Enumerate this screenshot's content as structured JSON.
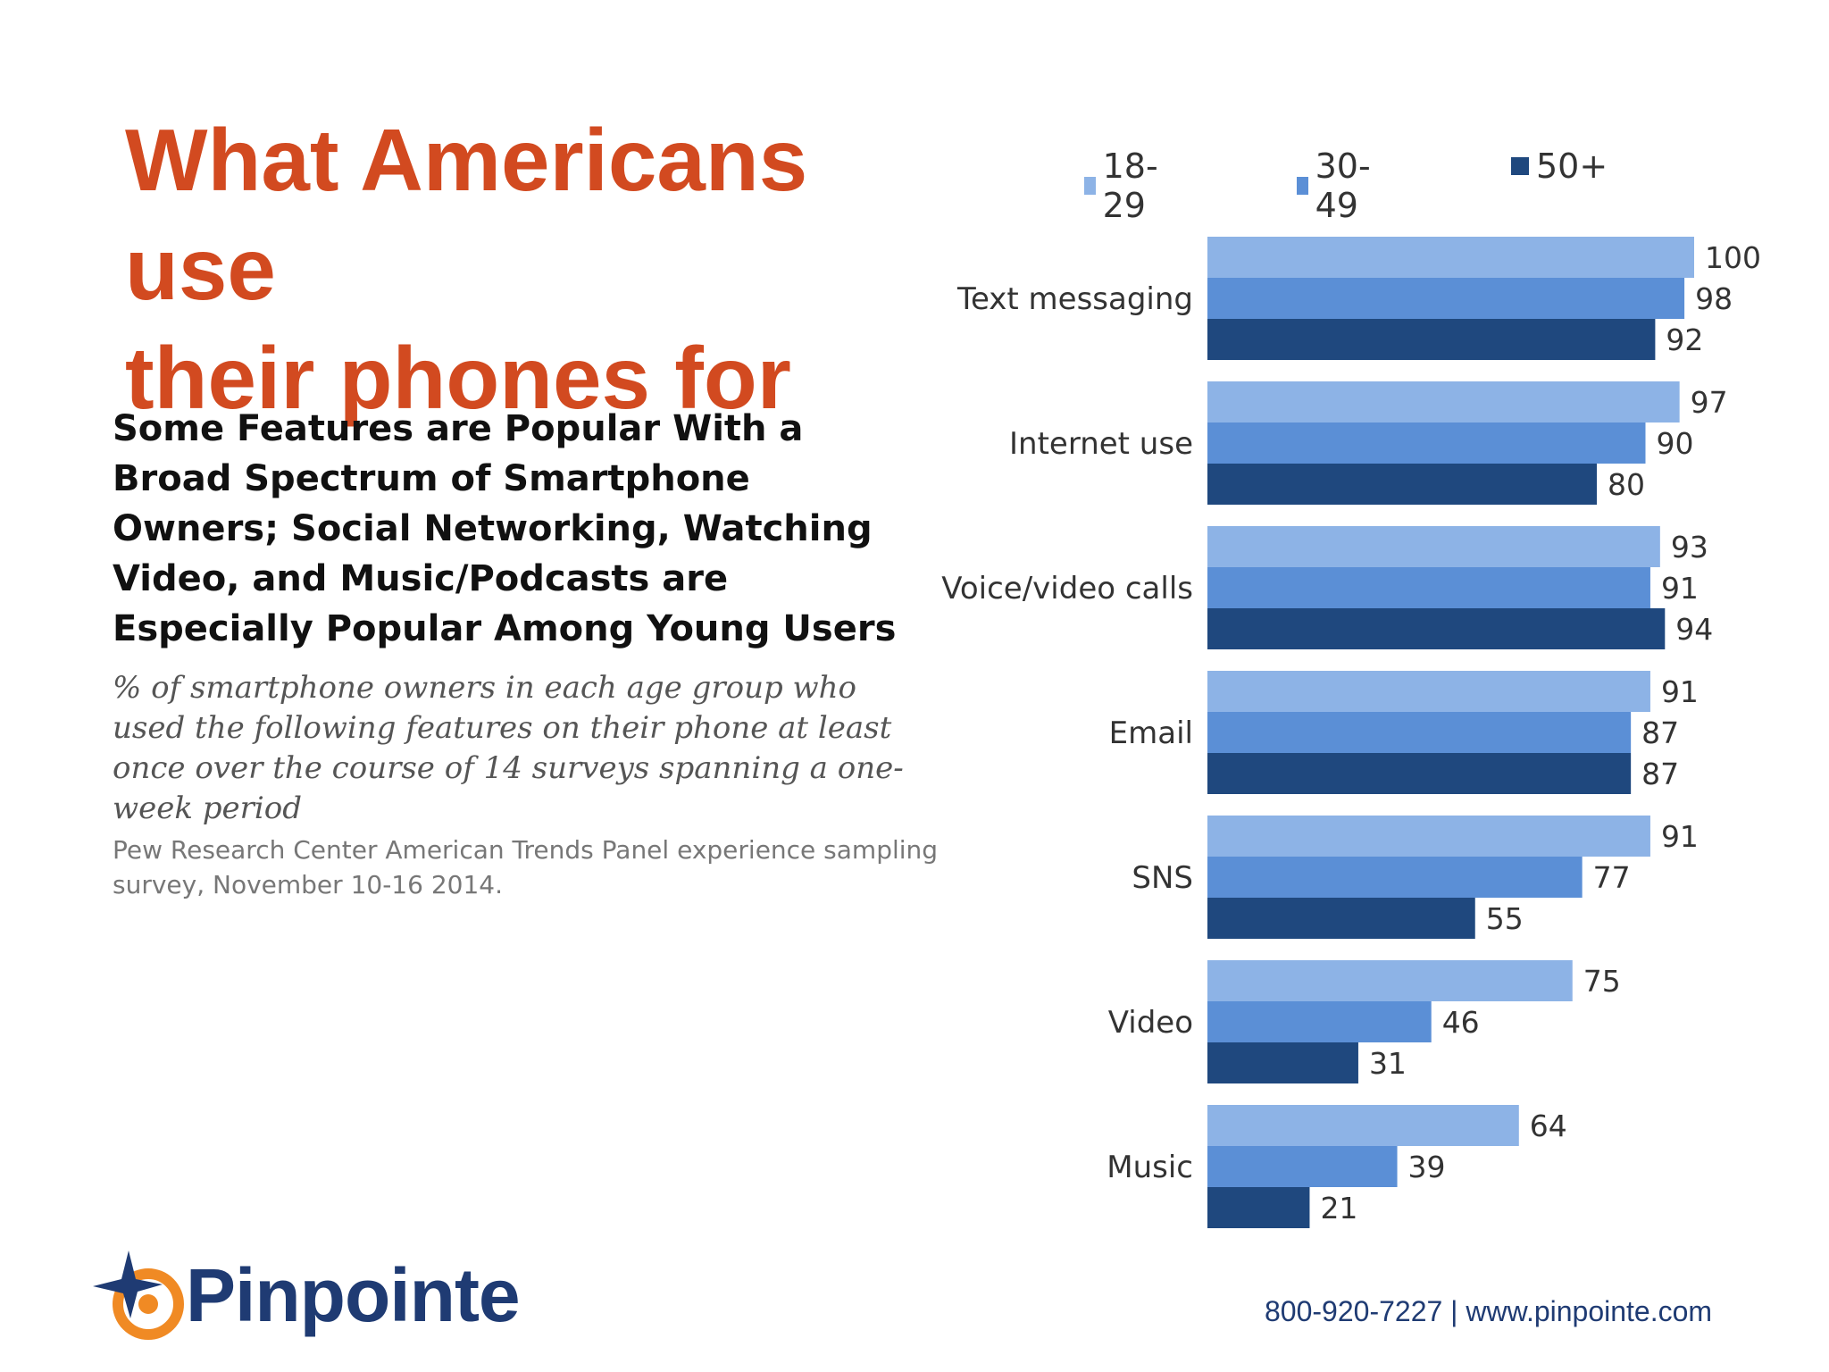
{
  "slide": {
    "title_line1": "What Americans use",
    "title_line2": "their phones for",
    "footer_contact": "800-920-7227 | www.pinpointe.com",
    "brand": "Pinpointe"
  },
  "chart_heading": "Some Features are Popular With a Broad Spectrum of Smartphone Owners; Social Networking, Watching Video, and Music/Podcasts are Especially Popular Among Young Users",
  "chart_subheading": "% of smartphone owners in each age group who used the following features on their phone at least once over the course of 14 surveys spanning a one-week period",
  "chart_source": "Pew Research Center American Trends Panel experience sampling survey, November 10-16 2014.",
  "colors": {
    "title": "#d24a20",
    "series_18_29": "#8db3e6",
    "series_30_49": "#5b8fd6",
    "series_50_plus": "#1f487e",
    "footer": "#1f3b73",
    "logo_orange": "#f08a24"
  },
  "chart_data": {
    "type": "bar",
    "orientation": "horizontal",
    "categories": [
      "Text messaging",
      "Internet use",
      "Voice/video calls",
      "Email",
      "SNS",
      "Video",
      "Music"
    ],
    "series": [
      {
        "name": "18-29",
        "values": [
          100,
          97,
          93,
          91,
          91,
          75,
          64
        ]
      },
      {
        "name": "30-49",
        "values": [
          98,
          90,
          91,
          87,
          77,
          46,
          39
        ]
      },
      {
        "name": "50+",
        "values": [
          92,
          80,
          94,
          87,
          55,
          31,
          21
        ]
      }
    ],
    "xlim": [
      0,
      100
    ],
    "grid": false,
    "legend_position": "top",
    "data_labels": true
  }
}
